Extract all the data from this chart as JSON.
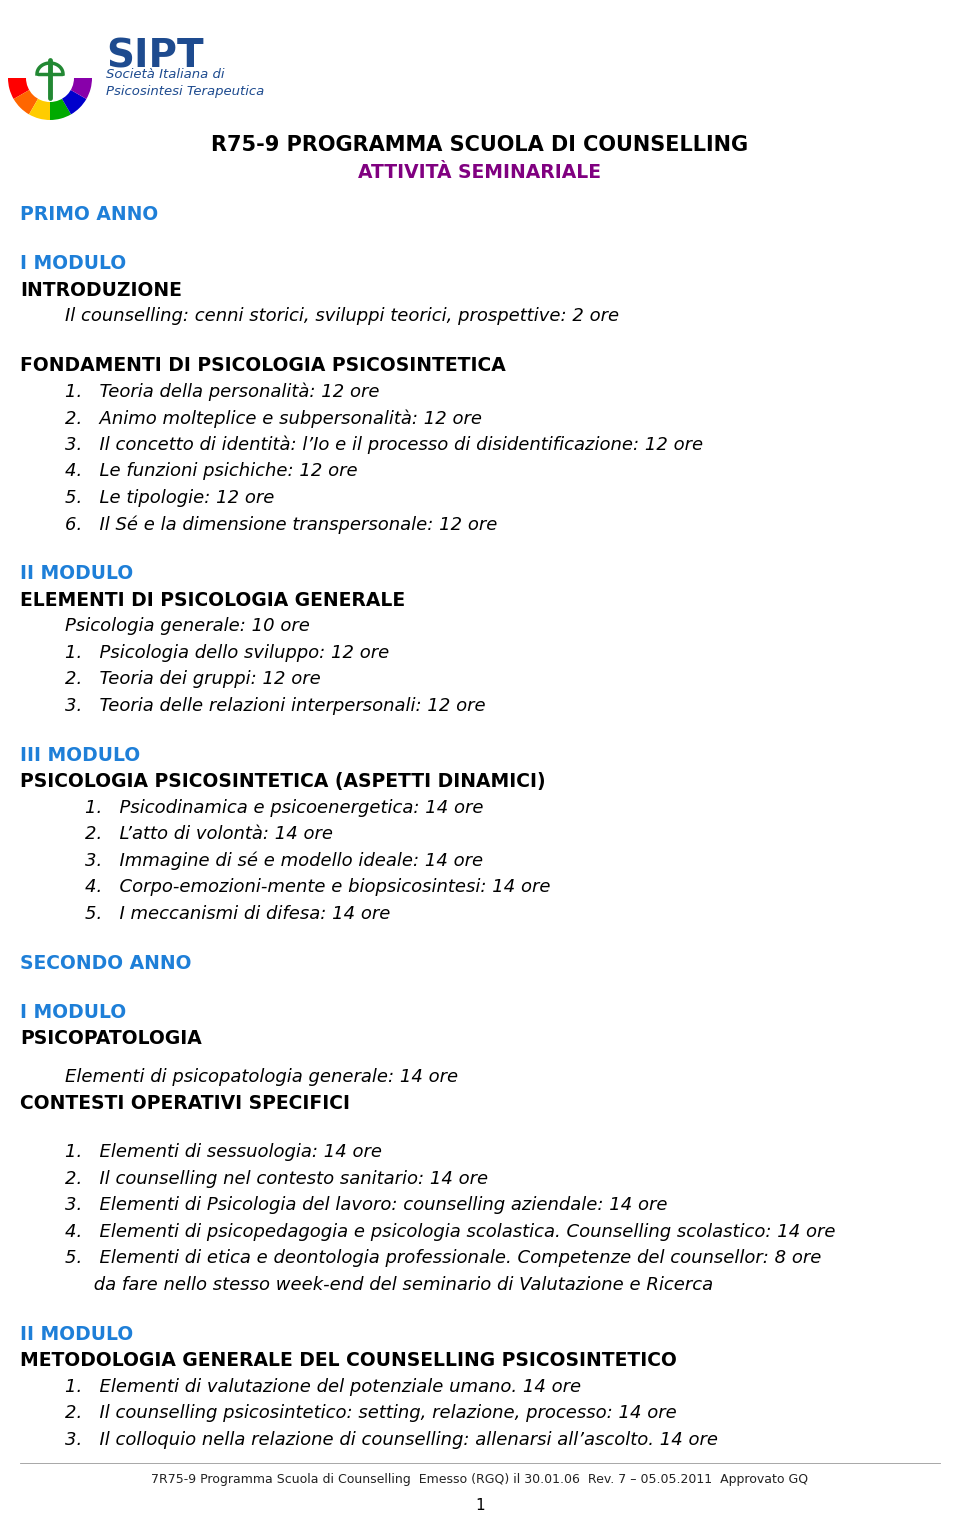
{
  "title": "R75-9 PROGRAMMA SCUOLA DI COUNSELLING",
  "subtitle": "ATTIVITÀ SEMINARIALE",
  "title_color": "#000000",
  "subtitle_color": "#800080",
  "year_color": "#1E7FD8",
  "section_color": "#1E7FD8",
  "body_color": "#000000",
  "bg_color": "#ffffff",
  "footer": "7R75-9 Programma Scuola di Counselling  Emesso (RGQ) il 30.01.06  Rev. 7 – 05.05.2011  Approvato GQ",
  "logo_colors": [
    "#FF0000",
    "#FF6600",
    "#FFCC00",
    "#00AA00",
    "#0000CC",
    "#8800AA"
  ],
  "sipt_color": "#1E4B8F",
  "lines": [
    {
      "text": "PRIMO ANNO",
      "style": "year",
      "indent": 0,
      "space_before": 0
    },
    {
      "text": "",
      "style": "blank",
      "indent": 0,
      "space_before": 0
    },
    {
      "text": "I MODULO",
      "style": "section",
      "indent": 0,
      "space_before": 0
    },
    {
      "text": "INTRODUZIONE",
      "style": "bold",
      "indent": 0,
      "space_before": 0
    },
    {
      "text": "Il counselling: cenni storici, sviluppi teorici, prospettive: 2 ore",
      "style": "italic",
      "indent": 1,
      "space_before": 0
    },
    {
      "text": "",
      "style": "blank",
      "indent": 0,
      "space_before": 0
    },
    {
      "text": "FONDAMENTI DI PSICOLOGIA PSICOSINTETICA",
      "style": "bold",
      "indent": 0,
      "space_before": 0
    },
    {
      "text": "1.   Teoria della personalità: 12 ore",
      "style": "italic",
      "indent": 1,
      "space_before": 0
    },
    {
      "text": "2.   Animo molteplice e subpersonalità: 12 ore",
      "style": "italic",
      "indent": 1,
      "space_before": 0
    },
    {
      "text": "3.   Il concetto di identità: l’Io e il processo di disidentificazione: 12 ore",
      "style": "italic",
      "indent": 1,
      "space_before": 0
    },
    {
      "text": "4.   Le funzioni psichiche: 12 ore",
      "style": "italic",
      "indent": 1,
      "space_before": 0
    },
    {
      "text": "5.   Le tipologie: 12 ore",
      "style": "italic",
      "indent": 1,
      "space_before": 0
    },
    {
      "text": "6.   Il Sé e la dimensione transpersonale: 12 ore",
      "style": "italic",
      "indent": 1,
      "space_before": 0
    },
    {
      "text": "",
      "style": "blank",
      "indent": 0,
      "space_before": 0
    },
    {
      "text": "II MODULO",
      "style": "section",
      "indent": 0,
      "space_before": 0
    },
    {
      "text": "ELEMENTI DI PSICOLOGIA GENERALE",
      "style": "bold",
      "indent": 0,
      "space_before": 0
    },
    {
      "text": "Psicologia generale: 10 ore",
      "style": "italic",
      "indent": 1,
      "space_before": 0
    },
    {
      "text": "1.   Psicologia dello sviluppo: 12 ore",
      "style": "italic",
      "indent": 1,
      "space_before": 0
    },
    {
      "text": "2.   Teoria dei gruppi: 12 ore",
      "style": "italic",
      "indent": 1,
      "space_before": 0
    },
    {
      "text": "3.   Teoria delle relazioni interpersonali: 12 ore",
      "style": "italic",
      "indent": 1,
      "space_before": 0
    },
    {
      "text": "",
      "style": "blank",
      "indent": 0,
      "space_before": 0
    },
    {
      "text": "III MODULO",
      "style": "section",
      "indent": 0,
      "space_before": 0
    },
    {
      "text": "PSICOLOGIA PSICOSINTETICA (ASPETTI DINAMICI)",
      "style": "bold",
      "indent": 0,
      "space_before": 0
    },
    {
      "text": "1.   Psicodinamica e psicoenergetica: 14 ore",
      "style": "italic",
      "indent": 2,
      "space_before": 0
    },
    {
      "text": "2.   L’atto di volontà: 14 ore",
      "style": "italic",
      "indent": 2,
      "space_before": 0
    },
    {
      "text": "3.   Immagine di sé e modello ideale: 14 ore",
      "style": "italic",
      "indent": 2,
      "space_before": 0
    },
    {
      "text": "4.   Corpo-emozioni-mente e biopsicosintesi: 14 ore",
      "style": "italic",
      "indent": 2,
      "space_before": 0
    },
    {
      "text": "5.   I meccanismi di difesa: 14 ore",
      "style": "italic",
      "indent": 2,
      "space_before": 0
    },
    {
      "text": "",
      "style": "blank",
      "indent": 0,
      "space_before": 0
    },
    {
      "text": "SECONDO ANNO",
      "style": "year",
      "indent": 0,
      "space_before": 0
    },
    {
      "text": "",
      "style": "blank",
      "indent": 0,
      "space_before": 0
    },
    {
      "text": "I MODULO",
      "style": "section",
      "indent": 0,
      "space_before": 0
    },
    {
      "text": "PSICOPATOLOGIA",
      "style": "bold",
      "indent": 0,
      "space_before": 0
    },
    {
      "text": "",
      "style": "blank_small",
      "indent": 0,
      "space_before": 0
    },
    {
      "text": "Elementi di psicopatologia generale: 14 ore",
      "style": "italic",
      "indent": 1,
      "space_before": 0
    },
    {
      "text": "CONTESTI OPERATIVI SPECIFICI",
      "style": "bold",
      "indent": 0,
      "space_before": 0
    },
    {
      "text": "",
      "style": "blank",
      "indent": 0,
      "space_before": 0
    },
    {
      "text": "1.   Elementi di sessuologia: 14 ore",
      "style": "italic",
      "indent": 1,
      "space_before": 0
    },
    {
      "text": "2.   Il counselling nel contesto sanitario: 14 ore",
      "style": "italic",
      "indent": 1,
      "space_before": 0
    },
    {
      "text": "3.   Elementi di Psicologia del lavoro: counselling aziendale: 14 ore",
      "style": "italic",
      "indent": 1,
      "space_before": 0
    },
    {
      "text": "4.   Elementi di psicopedagogia e psicologia scolastica. Counselling scolastico: 14 ore",
      "style": "italic",
      "indent": 1,
      "space_before": 0
    },
    {
      "text": "5.   Elementi di etica e deontologia professionale. Competenze del counsellor: 8 ore",
      "style": "italic",
      "indent": 1,
      "space_before": 0
    },
    {
      "text": "     da fare nello stesso week-end del seminario di Valutazione e Ricerca",
      "style": "italic_cont",
      "indent": 1,
      "space_before": 0
    },
    {
      "text": "",
      "style": "blank",
      "indent": 0,
      "space_before": 0
    },
    {
      "text": "II MODULO",
      "style": "section",
      "indent": 0,
      "space_before": 0
    },
    {
      "text": "METODOLOGIA GENERALE DEL COUNSELLING PSICOSINTETICO",
      "style": "bold",
      "indent": 0,
      "space_before": 0
    },
    {
      "text": "1.   Elementi di valutazione del potenziale umano. 14 ore",
      "style": "italic",
      "indent": 1,
      "space_before": 0
    },
    {
      "text": "2.   Il counselling psicosintetico: setting, relazione, processo: 14 ore",
      "style": "italic",
      "indent": 1,
      "space_before": 0
    },
    {
      "text": "3.   Il colloquio nella relazione di counselling: allenarsi all’ascolto. 14 ore",
      "style": "italic",
      "indent": 1,
      "space_before": 0
    }
  ]
}
